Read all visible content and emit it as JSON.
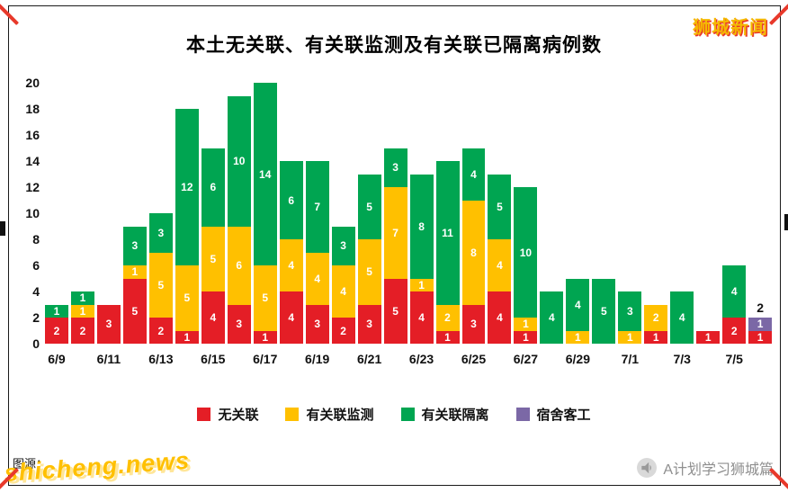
{
  "title": "本土无关联、有关联监测及有关联已隔离病例数",
  "watermark_top_right": "狮城新闻",
  "colors": {
    "red": "#e41e26",
    "yellow": "#ffc000",
    "green": "#00a551",
    "purple": "#7b68a6"
  },
  "chart_data": {
    "type": "bar",
    "stacked": true,
    "title": "本土无关联、有关联监测及有关联已隔离病例数",
    "xlabel": "",
    "ylabel": "",
    "ylim": [
      0,
      20
    ],
    "yticks": [
      0,
      2,
      4,
      6,
      8,
      10,
      12,
      14,
      16,
      18,
      20
    ],
    "grid": false,
    "legend_position": "bottom",
    "x_tick_every": 2,
    "categories": [
      "6/9",
      "6/10",
      "6/11",
      "6/12",
      "6/13",
      "6/14",
      "6/15",
      "6/16",
      "6/17",
      "6/18",
      "6/19",
      "6/20",
      "6/21",
      "6/22",
      "6/23",
      "6/24",
      "6/25",
      "6/26",
      "6/27",
      "6/28",
      "6/29",
      "6/30",
      "7/1",
      "7/2",
      "7/3",
      "7/4",
      "7/5",
      "7/6"
    ],
    "series": [
      {
        "name": "无关联",
        "color_key": "red",
        "values": [
          2,
          2,
          3,
          5,
          2,
          1,
          4,
          3,
          1,
          4,
          3,
          2,
          3,
          5,
          4,
          1,
          3,
          4,
          1,
          0,
          0,
          0,
          0,
          1,
          0,
          1,
          2,
          1
        ]
      },
      {
        "name": "有关联监测",
        "color_key": "yellow",
        "values": [
          0,
          1,
          0,
          1,
          5,
          5,
          5,
          6,
          5,
          4,
          4,
          4,
          5,
          7,
          1,
          2,
          8,
          4,
          1,
          0,
          1,
          0,
          1,
          2,
          0,
          0,
          0,
          0
        ]
      },
      {
        "name": "有关联隔离",
        "color_key": "green",
        "values": [
          1,
          1,
          0,
          3,
          3,
          12,
          6,
          10,
          14,
          6,
          7,
          3,
          5,
          3,
          8,
          11,
          4,
          5,
          10,
          4,
          4,
          5,
          3,
          0,
          4,
          0,
          4,
          0
        ]
      },
      {
        "name": "宿舍客工",
        "color_key": "purple",
        "values": [
          0,
          0,
          0,
          0,
          0,
          0,
          0,
          0,
          0,
          0,
          0,
          0,
          0,
          0,
          0,
          0,
          0,
          0,
          0,
          0,
          0,
          0,
          0,
          0,
          0,
          0,
          0,
          1
        ]
      }
    ],
    "outside_labels": {
      "27": "2"
    }
  },
  "legend": [
    {
      "label": "无关联",
      "color_key": "red"
    },
    {
      "label": "有关联监测",
      "color_key": "yellow"
    },
    {
      "label": "有关联隔离",
      "color_key": "green"
    },
    {
      "label": "宿舍客工",
      "color_key": "purple"
    }
  ],
  "footer": {
    "source_prefix": "图源：",
    "watermark": "shicheng.news",
    "credit": "A计划学习狮城篇"
  }
}
